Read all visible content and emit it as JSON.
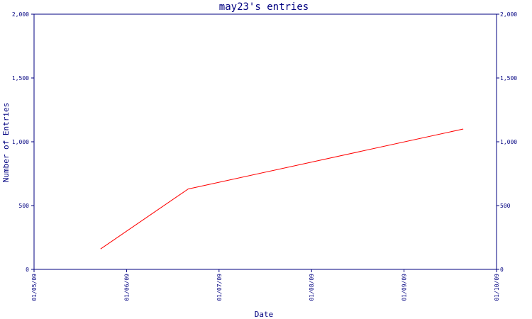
{
  "chart_data": {
    "type": "line",
    "title": "may23's entries",
    "xlabel": "Date",
    "ylabel": "Number of Entries",
    "x_ticks": [
      "01/05/09",
      "01/06/09",
      "01/07/09",
      "01/08/09",
      "01/09/09",
      "01/10/09"
    ],
    "y_ticks_left": [
      "0",
      "500",
      "1,000",
      "1,500",
      "2,000"
    ],
    "y_ticks_right": [
      "0",
      "500",
      "1,000",
      "1,500",
      "2,000"
    ],
    "ylim": [
      0,
      2000
    ],
    "xlim": [
      "2009-05-01",
      "2009-10-01"
    ],
    "grid": false,
    "series": [
      {
        "points": [
          {
            "x": "2009-05-23",
            "y": 160
          },
          {
            "x": "2009-06-21",
            "y": 630
          },
          {
            "x": "2009-09-20",
            "y": 1100
          }
        ]
      }
    ]
  },
  "colors": {
    "axis": "#000080",
    "line": "#ff0000",
    "background": "#ffffff"
  }
}
